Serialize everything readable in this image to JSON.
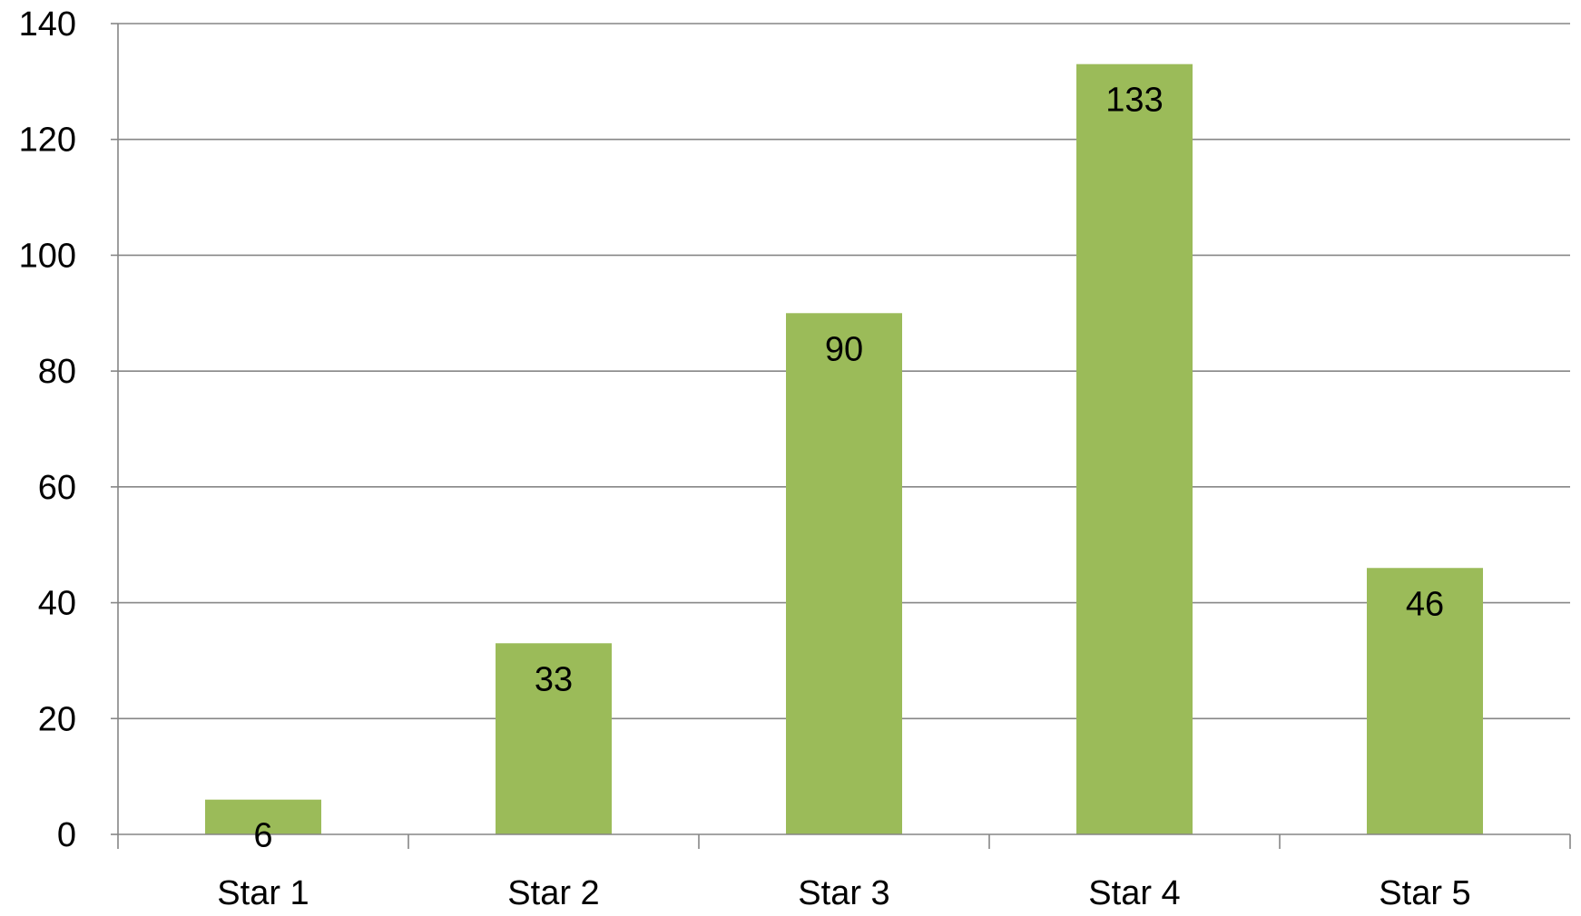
{
  "chart_data": {
    "type": "bar",
    "title": "",
    "xlabel": "",
    "ylabel": "",
    "categories": [
      "Star 1",
      "Star 2",
      "Star 3",
      "Star 4",
      "Star 5"
    ],
    "values": [
      6,
      33,
      90,
      133,
      46
    ],
    "data_labels": [
      "6",
      "33",
      "90",
      "133",
      "46"
    ],
    "ylim": [
      0,
      140
    ],
    "yticks": [
      0,
      20,
      40,
      60,
      80,
      100,
      120,
      140
    ],
    "ytick_labels": [
      "0",
      "20",
      "40",
      "60",
      "80",
      "100",
      "120",
      "140"
    ],
    "grid": true,
    "legend": "none",
    "bar_color": "#9BBB59",
    "grid_color": "#868686",
    "axis_color": "#868686"
  }
}
